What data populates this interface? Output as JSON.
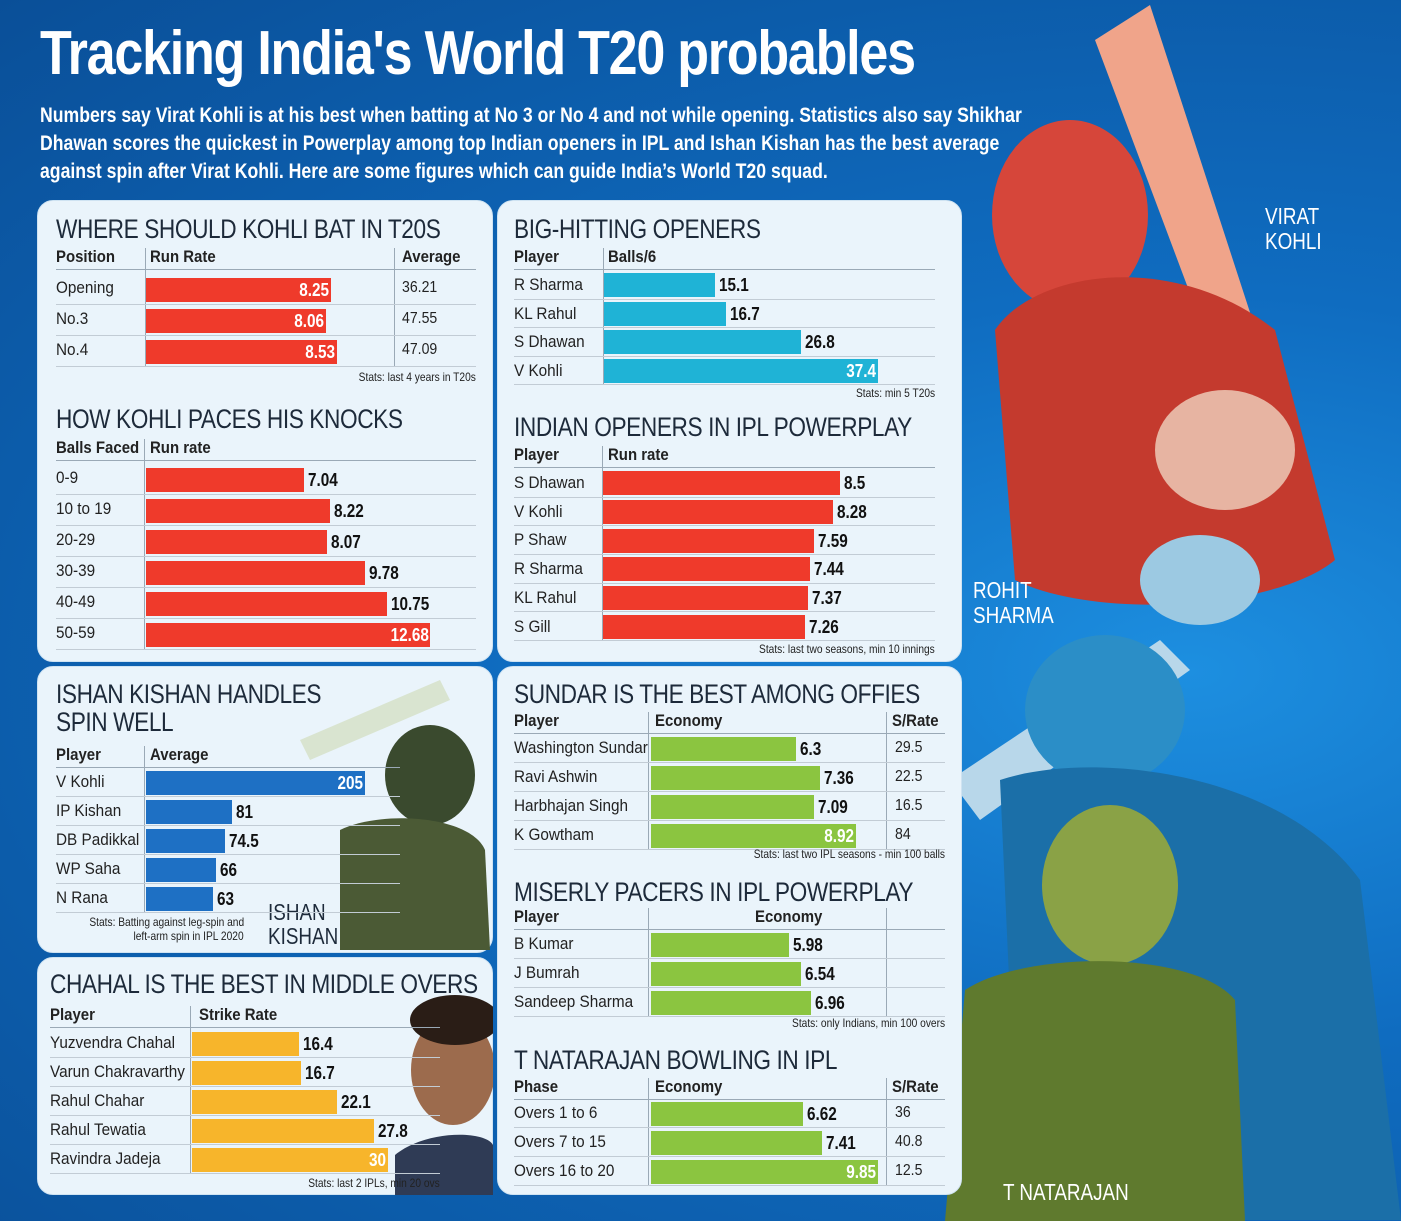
{
  "title": "Tracking India's World T20 probables",
  "intro": "Numbers say Virat Kohli is at his best when batting at No 3 or No 4 and not while opening. Statistics also say Shikhar Dhawan scores the quickest in Powerplay among top Indian openers in IPL and Ishan Kishan has the best average against spin after Virat Kohli. Here are some figures which can guide India’s World T20 squad.",
  "photo_labels": {
    "kohli": [
      "VIRAT",
      "KOHLI"
    ],
    "rohit": [
      "ROHIT",
      "SHARMA"
    ],
    "natarajan": "T NATARAJAN",
    "ishan": [
      "ISHAN",
      "KISHAN"
    ]
  },
  "colors": {
    "red": "#ef3a2b",
    "cyan": "#1fb3d6",
    "blue": "#1e70c4",
    "orange": "#f7b52b",
    "green": "#8bc540"
  },
  "chart_data": [
    {
      "id": "kohli_position",
      "type": "bar",
      "title": "WHERE SHOULD KOHLI BAT IN T20S",
      "headers": [
        "Position",
        "Run Rate",
        "Average"
      ],
      "categories": [
        "Opening",
        "No.3",
        "No.4"
      ],
      "values": [
        8.25,
        8.06,
        8.53
      ],
      "extra": [
        "36.21",
        "47.55",
        "47.09"
      ],
      "scale_max": 14.3,
      "note": "Stats: last 4 years in T20s",
      "color": "red",
      "labels_inside": true
    },
    {
      "id": "kohli_pace",
      "type": "bar",
      "title": "HOW KOHLI PACES HIS KNOCKS",
      "headers": [
        "Balls Faced",
        "Run rate"
      ],
      "categories": [
        "0-9",
        "10 to 19",
        "20-29",
        "30-39",
        "40-49",
        "50-59"
      ],
      "values": [
        7.04,
        8.22,
        8.07,
        9.78,
        10.75,
        12.68
      ],
      "scale_max": 14.3,
      "color": "red",
      "inside_last": true
    },
    {
      "id": "big_hitting",
      "type": "bar",
      "title": "BIG-HITTING OPENERS",
      "headers": [
        "Player",
        "Balls/6"
      ],
      "categories": [
        "R Sharma",
        "KL Rahul",
        "S Dhawan",
        "V Kohli"
      ],
      "values": [
        15.1,
        16.7,
        26.8,
        37.4
      ],
      "scale_max": 45.0,
      "note": "Stats: min 5 T20s",
      "color": "cyan",
      "inside_last": true
    },
    {
      "id": "ipl_powerplay",
      "type": "bar",
      "title": "INDIAN OPENERS IN IPL POWERPLAY",
      "headers": [
        "Player",
        "Run rate"
      ],
      "categories": [
        "S Dhawan",
        "V Kohli",
        "P Shaw",
        "R Sharma",
        "KL Rahul",
        "S Gill"
      ],
      "values": [
        8.5,
        8.28,
        7.59,
        7.44,
        7.37,
        7.26
      ],
      "scale_max": 11.5,
      "note": "Stats: last two seasons, min 10 innings",
      "color": "red"
    },
    {
      "id": "ishan_spin",
      "type": "bar",
      "title": "ISHAN KISHAN HANDLES SPIN WELL",
      "title_lines": [
        "ISHAN KISHAN HANDLES",
        "SPIN WELL"
      ],
      "headers": [
        "Player",
        "Average"
      ],
      "categories": [
        "V Kohli",
        "IP Kishan",
        "DB Padikkal",
        "WP Saha",
        "N Rana"
      ],
      "values": [
        205,
        81,
        74.5,
        66,
        63
      ],
      "scale_max": 225.0,
      "note_lines": [
        "Stats: Batting against leg-spin and",
        "left-arm spin in IPL 2020"
      ],
      "color": "blue",
      "inside_first": true
    },
    {
      "id": "chahal",
      "type": "bar",
      "title": "CHAHAL IS THE BEST IN MIDDLE OVERS",
      "headers": [
        "Player",
        "Strike Rate"
      ],
      "categories": [
        "Yuzvendra Chahal",
        "Varun Chakravarthy",
        "Rahul Chahar",
        "Rahul Tewatia",
        "Ravindra Jadeja"
      ],
      "values": [
        16.4,
        16.7,
        22.1,
        27.8,
        30
      ],
      "scale_max": 39.0,
      "note": "Stats: last 2 IPLs,  min 20 ovs",
      "color": "orange",
      "inside_last": true
    },
    {
      "id": "sundar",
      "type": "bar",
      "title": "SUNDAR IS THE BEST AMONG OFFIES",
      "headers": [
        "Player",
        "Economy",
        "S/Rate"
      ],
      "categories": [
        "Washington Sundar",
        "Ravi Ashwin",
        "Harbhajan Singh",
        "K Gowtham"
      ],
      "values": [
        6.3,
        7.36,
        7.09,
        8.92
      ],
      "extra": [
        "29.5",
        "22.5",
        "16.5",
        "84"
      ],
      "scale_max": 10.3,
      "note": "Stats: last two IPL seasons - min 100 balls",
      "color": "green",
      "inside_last": true
    },
    {
      "id": "pacers",
      "type": "bar",
      "title": "MISERLY PACERS IN IPL POWERPLAY",
      "headers": [
        "Player",
        "Economy"
      ],
      "categories": [
        "B Kumar",
        "J Bumrah",
        "Sandeep Sharma"
      ],
      "values": [
        5.98,
        6.54,
        6.96
      ],
      "scale_max": 10.3,
      "note": "Stats: only Indians, min 100 overs",
      "color": "green"
    },
    {
      "id": "natarajan",
      "type": "bar",
      "title": "T NATARAJAN BOWLING IN IPL",
      "headers": [
        "Phase",
        "Economy",
        "S/Rate"
      ],
      "categories": [
        "Overs 1 to 6",
        "Overs 7 to 15",
        "Overs 16 to 20"
      ],
      "values": [
        6.62,
        7.41,
        9.85
      ],
      "extra": [
        "36",
        "40.8",
        "12.5"
      ],
      "scale_max": 10.3,
      "color": "green",
      "inside_last": true
    }
  ]
}
